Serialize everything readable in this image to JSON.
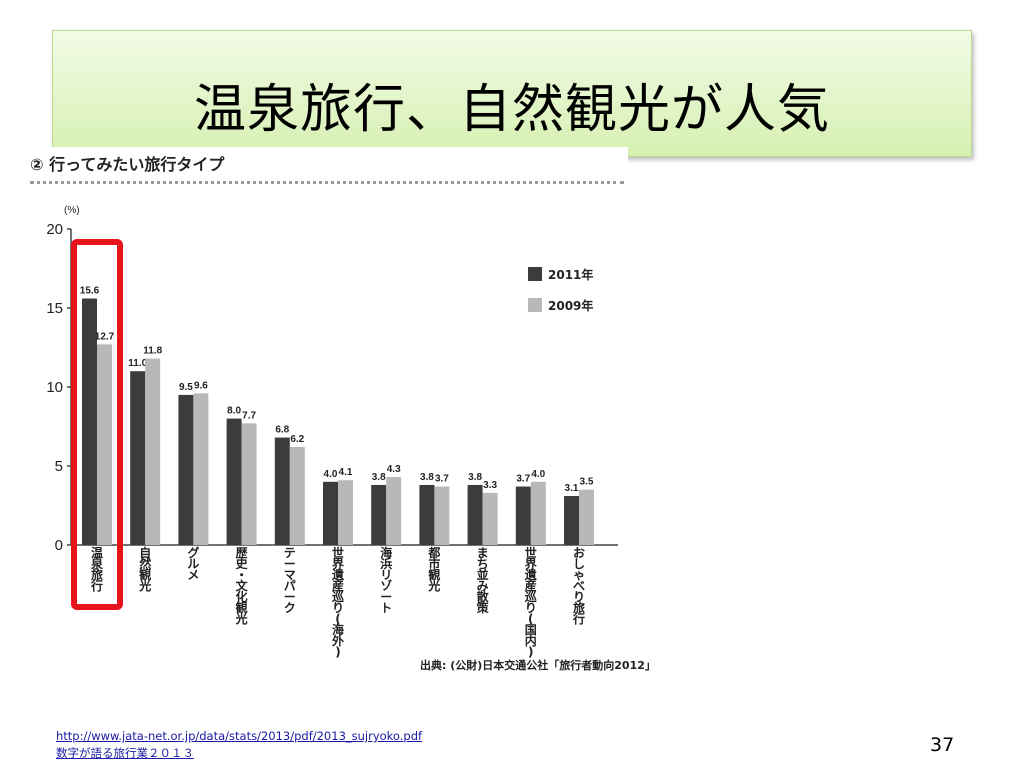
{
  "slide": {
    "title": "温泉旅行、自然観光が人気",
    "chart_heading": "② 行ってみたい旅行タイプ",
    "source_note": "出典: (公財)日本交通公社「旅行者動向2012」",
    "footer_link": "http://www.jata-net.or.jp/data/stats/2013/pdf/2013_sujryoko.pdf",
    "footer_sub": "数字が語る旅行業２０１３",
    "page_number": "37"
  },
  "chart_data": {
    "type": "bar",
    "ylabel": "(%)",
    "ylim": [
      0,
      20
    ],
    "yticks": [
      0,
      5,
      10,
      15,
      20
    ],
    "categories": [
      "温泉旅行",
      "自然観光",
      "グルメ",
      "歴史・文化観光",
      "テーマパーク",
      "世界遺産巡り(海外)",
      "海浜リゾート",
      "都市観光",
      "まち並み散策",
      "世界遺産巡り(国内)",
      "おしゃべり旅行"
    ],
    "series": [
      {
        "name": "2011年",
        "values": [
          15.6,
          11.0,
          9.5,
          8.0,
          6.8,
          4.0,
          3.8,
          3.8,
          3.8,
          3.7,
          3.1
        ],
        "color": "#3c3c3c"
      },
      {
        "name": "2009年",
        "values": [
          12.7,
          11.8,
          9.6,
          7.7,
          6.2,
          4.1,
          4.3,
          3.7,
          3.3,
          4.0,
          3.5
        ],
        "color": "#b8b8b8"
      }
    ],
    "legend_position": "right",
    "highlight_category": "温泉旅行",
    "highlight_color": "#e8141b",
    "grid": false
  }
}
